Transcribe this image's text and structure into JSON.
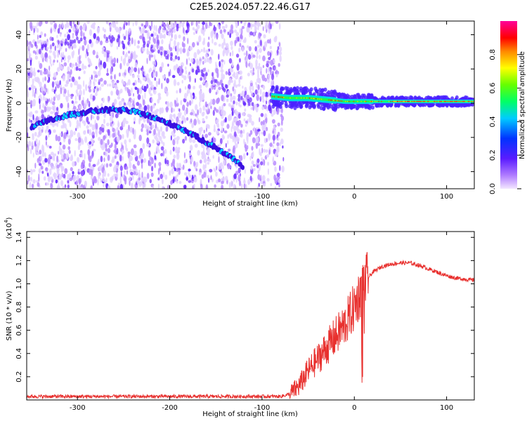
{
  "title": "C2E5.2024.057.22.46.G17",
  "chart_data": [
    {
      "type": "heatmap",
      "xlabel": "Height of straight line (km)",
      "ylabel": "Frequency (Hz)",
      "xlim": [
        -355,
        130
      ],
      "ylim": [
        -50,
        48
      ],
      "xticks": [
        -300,
        -200,
        -100,
        0,
        100
      ],
      "yticks": [
        -40,
        -20,
        0,
        20,
        40
      ],
      "colorbar": {
        "label": "Normalized spectral amplitude",
        "range": [
          0,
          1
        ],
        "ticks": [
          0.0,
          0.2,
          0.4,
          0.6,
          0.8
        ],
        "colormap": "rainbow (violet → blue → cyan → green → yellow → red → magenta)"
      },
      "ridge": [
        {
          "x": -350,
          "y": -14
        },
        {
          "x": -330,
          "y": -10
        },
        {
          "x": -310,
          "y": -7
        },
        {
          "x": -290,
          "y": -5
        },
        {
          "x": -270,
          "y": -4
        },
        {
          "x": -250,
          "y": -4
        },
        {
          "x": -230,
          "y": -6
        },
        {
          "x": -210,
          "y": -10
        },
        {
          "x": -190,
          "y": -14
        },
        {
          "x": -170,
          "y": -20
        },
        {
          "x": -150,
          "y": -26
        },
        {
          "x": -130,
          "y": -33
        },
        {
          "x": -120,
          "y": -37
        }
      ],
      "flat_band": [
        {
          "x": -90,
          "y": 4
        },
        {
          "x": -70,
          "y": 3
        },
        {
          "x": -50,
          "y": 3
        },
        {
          "x": -30,
          "y": 2
        },
        {
          "x": -10,
          "y": 1
        },
        {
          "x": 10,
          "y": 1
        },
        {
          "x": 50,
          "y": 1
        },
        {
          "x": 100,
          "y": 1
        },
        {
          "x": 130,
          "y": 1
        }
      ],
      "noise_region_x": [
        -355,
        -80
      ]
    },
    {
      "type": "line",
      "xlabel": "Height of straight line (km)",
      "ylabel": "SNR (10 * v/v)",
      "yscale_label": "(x10",
      "yscale_exponent": "4",
      "yscale_suffix": ")",
      "xlim": [
        -355,
        130
      ],
      "ylim": [
        0,
        1.45
      ],
      "xticks": [
        -300,
        -200,
        -100,
        0,
        100
      ],
      "yticks": [
        0.2,
        0.4,
        0.6,
        0.8,
        1.0,
        1.2,
        1.4
      ],
      "color": "#e8302e",
      "series": [
        {
          "x": [
            -355,
            -300,
            -250,
            -200,
            -150,
            -100,
            -80,
            -70,
            -60,
            -50,
            -40,
            -30,
            -20,
            -10,
            0,
            5,
            10,
            15,
            20,
            30,
            40,
            50,
            60,
            70,
            80,
            90,
            100,
            110,
            120,
            130
          ],
          "values": [
            0.03,
            0.03,
            0.03,
            0.03,
            0.03,
            0.03,
            0.03,
            0.05,
            0.12,
            0.25,
            0.35,
            0.45,
            0.55,
            0.65,
            0.8,
            0.9,
            1.0,
            1.05,
            1.1,
            1.15,
            1.17,
            1.18,
            1.18,
            1.16,
            1.13,
            1.1,
            1.07,
            1.05,
            1.04,
            1.03
          ]
        }
      ]
    }
  ]
}
